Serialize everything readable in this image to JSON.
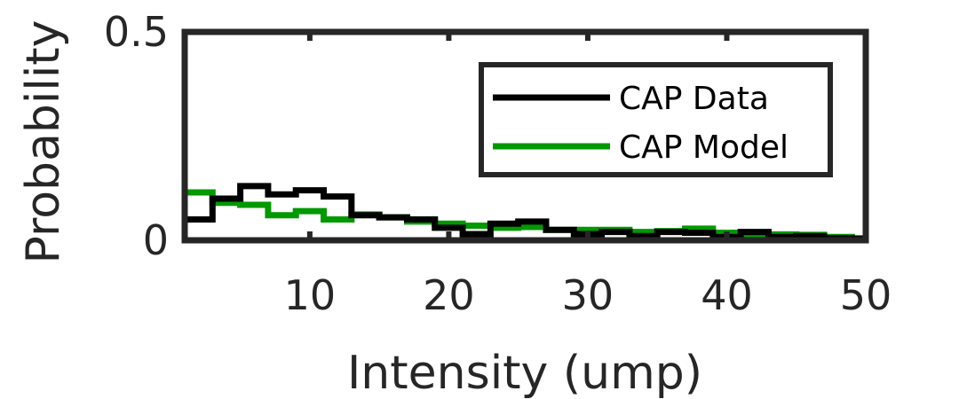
{
  "chart_data": {
    "type": "line",
    "xlabel": "Intensity (ump)",
    "ylabel": "Probability",
    "xlim": [
      1,
      50
    ],
    "ylim": [
      0,
      0.5
    ],
    "xticks": [
      10,
      20,
      30,
      40,
      50
    ],
    "xtick_labels": [
      "10",
      "20",
      "30",
      "40",
      "50"
    ],
    "yticks": [
      0,
      0.5
    ],
    "ytick_labels": [
      "0",
      "0.5"
    ],
    "grid": false,
    "legend_position": "top-right",
    "bin_edges": [
      1,
      3,
      5,
      7,
      9,
      11,
      13,
      15,
      17,
      19,
      21,
      23,
      25,
      27,
      29,
      31,
      33,
      35,
      37,
      39,
      41,
      43,
      45,
      47,
      49,
      50
    ],
    "series": [
      {
        "name": "CAP Data",
        "color": "#000000",
        "values": [
          0.05,
          0.1,
          0.13,
          0.11,
          0.12,
          0.105,
          0.06,
          0.055,
          0.05,
          0.03,
          0.015,
          0.04,
          0.045,
          0.025,
          0.015,
          0.02,
          0.01,
          0.02,
          0.018,
          0.008,
          0.02,
          0.008,
          0.01,
          0.005,
          0.003
        ]
      },
      {
        "name": "CAP Model",
        "color": "#009900",
        "values": [
          0.115,
          0.09,
          0.085,
          0.06,
          0.07,
          0.05,
          0.062,
          0.055,
          0.045,
          0.04,
          0.035,
          0.03,
          0.032,
          0.025,
          0.025,
          0.025,
          0.02,
          0.022,
          0.028,
          0.018,
          0.015,
          0.014,
          0.013,
          0.008,
          0.005
        ]
      }
    ]
  }
}
